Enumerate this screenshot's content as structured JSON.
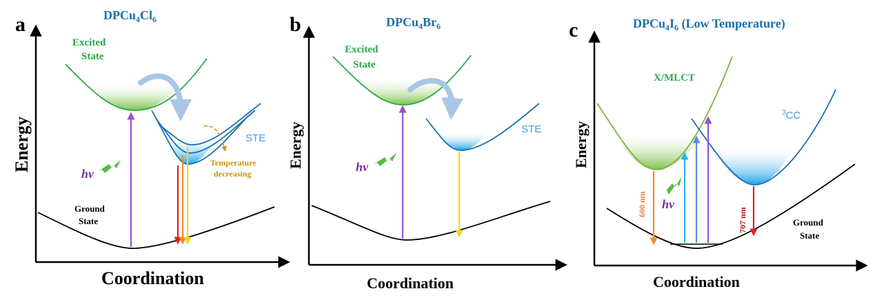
{
  "panels": {
    "a": {
      "letter": "a",
      "title_main": "DPCu",
      "title_sub1": "4",
      "title_mid": "Cl",
      "title_sub2": "6",
      "excited_line1": "Excited",
      "excited_line2": "State",
      "ste": "STE",
      "temp_line1": "Temperature",
      "temp_line2": "decreasing",
      "ground_line1": "Ground",
      "ground_line2": "State",
      "hv": "hν",
      "y_label": "Energy",
      "x_label": "Coordination"
    },
    "b": {
      "letter": "b",
      "title_main": "DPCu",
      "title_sub1": "4",
      "title_mid": "Br",
      "title_sub2": "6",
      "excited_line1": "Excited",
      "excited_line2": "State",
      "ste": "STE",
      "hv": "hν",
      "y_label": "Energy",
      "x_label": "Coordination"
    },
    "c": {
      "letter": "c",
      "title_main": "DPCu",
      "title_sub1": "4",
      "title_mid": "I",
      "title_sub2": "6",
      "title_tail": " (Low Temperature)",
      "xmlct": "X/MLCT",
      "cc_sup": "3",
      "cc": "CC",
      "nm600": "600 nm",
      "nm707": "707 nm",
      "hv": "hν",
      "ground_line1": "Ground",
      "ground_line2": "State",
      "y_label": "Energy",
      "x_label": "Coordination"
    }
  },
  "colors": {
    "green": "#2aa84a",
    "blue": "#1a6fb0",
    "purple": "#9b4fd1",
    "red": "#e02020",
    "yellow": "#f2d51c",
    "orange": "#f08a2c",
    "cyan": "#27b6e8"
  }
}
